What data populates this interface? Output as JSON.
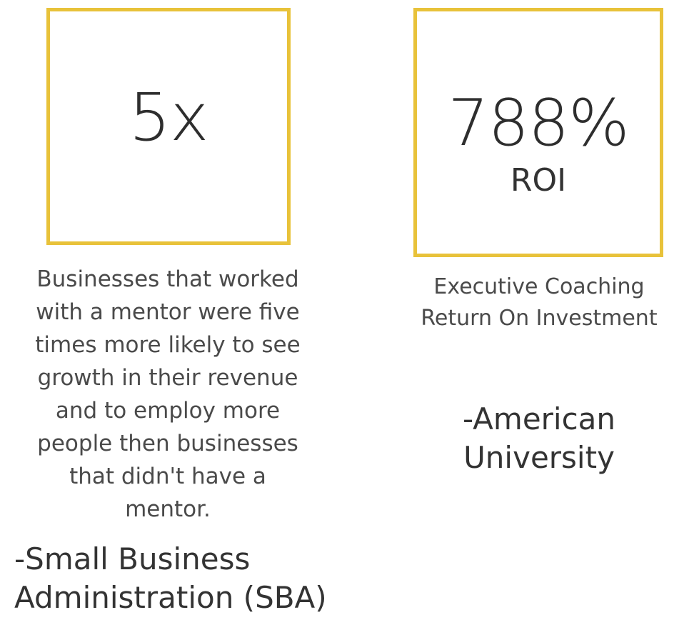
{
  "colors": {
    "box_border": "#e8c23a",
    "text": "#333333"
  },
  "left_stat": {
    "number": "5x",
    "description_lines": [
      "Businesses that worked",
      "with a mentor were five",
      "times more likely to see",
      "growth in their revenue",
      "and to employ more",
      "people then businesses",
      "that didn't have a",
      "mentor."
    ],
    "source_lines": [
      "-Small Business",
      "Administration (SBA)"
    ]
  },
  "right_stat": {
    "number": "788%",
    "sub_label": "ROI",
    "description_lines": [
      "Executive Coaching",
      "Return On Investment"
    ],
    "source_lines": [
      "-American",
      "University"
    ]
  }
}
